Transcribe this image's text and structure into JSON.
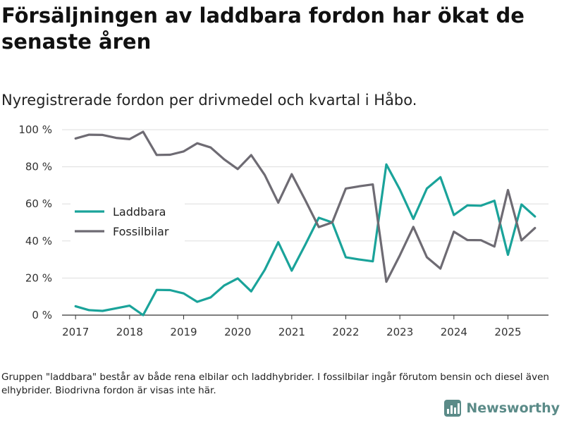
{
  "header": {
    "title": "Försäljningen av laddbara fordon har ökat de senaste åren",
    "subtitle": "Nyregistrerade fordon per drivmedel och kvartal i Håbo."
  },
  "footer": {
    "note": "Gruppen \"laddbara\" består av både rena elbilar och laddhybrider. I fossilbilar ingår förutom bensin och diesel även elhybrider. Biodrivna fordon är visas inte här.",
    "brand": "Newsworthy"
  },
  "colors": {
    "laddbara": "#1aa39a",
    "fossil": "#6e6b73",
    "grid": "#dddddd",
    "brand": "#5b8b88"
  },
  "chart_data": {
    "type": "line",
    "title": "Nyregistrerade fordon per drivmedel och kvartal i Håbo.",
    "xlabel": "",
    "ylabel": "",
    "x_ticks": [
      2017,
      2018,
      2019,
      2020,
      2021,
      2022,
      2023,
      2024,
      2025
    ],
    "xlim": [
      2016.75,
      2025.75
    ],
    "ylim": [
      0,
      100
    ],
    "y_ticks": [
      0,
      20,
      40,
      60,
      80,
      100
    ],
    "y_tick_labels": [
      "0 %",
      "20 %",
      "40 %",
      "60 %",
      "80 %",
      "100 %"
    ],
    "legend": "left",
    "x": [
      2017,
      2017.25,
      2017.5,
      2017.75,
      2018,
      2018.25,
      2018.5,
      2018.75,
      2019,
      2019.25,
      2019.5,
      2019.75,
      2020,
      2020.25,
      2020.5,
      2020.75,
      2021,
      2021.25,
      2021.5,
      2021.75,
      2022,
      2022.25,
      2022.5,
      2022.75,
      2023,
      2023.25,
      2023.5,
      2023.75,
      2024,
      2024.25,
      2024.5,
      2024.75,
      2025,
      2025.25,
      2025.5
    ],
    "series": [
      {
        "name": "Laddbara",
        "color": "#1aa39a",
        "values": [
          4.8,
          2.7,
          2.3,
          3.7,
          5.1,
          0,
          13.6,
          13.5,
          11.7,
          7.2,
          9.6,
          16,
          19.8,
          12.8,
          24.4,
          39.3,
          24,
          38,
          52.5,
          50,
          31.2,
          30,
          29,
          81.3,
          67.7,
          51.9,
          68.3,
          74.4,
          54,
          59.2,
          59,
          61.7,
          32.5,
          59.7,
          53.2
        ]
      },
      {
        "name": "Fossilbilar",
        "color": "#6e6b73",
        "values": [
          95.3,
          97.3,
          97.2,
          95.6,
          94.9,
          98.9,
          86.4,
          86.5,
          88.3,
          92.7,
          90.4,
          84,
          78.8,
          86.3,
          75.6,
          60.7,
          76,
          62,
          47.5,
          50,
          68.3,
          69.5,
          70.5,
          18,
          32.3,
          47.6,
          31.2,
          25.1,
          45,
          40.5,
          40.4,
          37,
          67.5,
          40.3,
          47
        ]
      }
    ]
  }
}
